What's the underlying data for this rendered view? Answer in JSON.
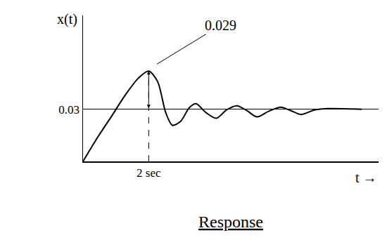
{
  "chart_data": {
    "type": "line",
    "title": "Response",
    "x_label": "t →",
    "y_label": "x(t)",
    "annotations": [
      "0.029"
    ],
    "x": [
      0,
      0.45,
      0.87,
      1.28,
      1.69,
      2.0,
      2.27,
      2.52,
      2.72,
      2.97,
      3.24,
      3.44,
      3.75,
      4.06,
      4.37,
      4.68,
      4.99,
      5.3,
      5.65,
      6.02,
      6.33,
      6.64,
      7.05,
      7.46,
      8.49
    ],
    "values": [
      0,
      0.014,
      0.026,
      0.038,
      0.048,
      0.052,
      0.046,
      0.028,
      0.0208,
      0.023,
      0.031,
      0.0332,
      0.028,
      0.0248,
      0.0296,
      0.032,
      0.0292,
      0.0256,
      0.0288,
      0.0312,
      0.0292,
      0.027,
      0.0296,
      0.0304,
      0.03
    ],
    "color": "#000000",
    "xlim": [
      0,
      9
    ],
    "xticks": [
      {
        "value": 2,
        "label": "2 sec"
      }
    ],
    "ylim": [
      0,
      0.084
    ],
    "yticks": [
      0.03
    ],
    "grid": "y"
  }
}
